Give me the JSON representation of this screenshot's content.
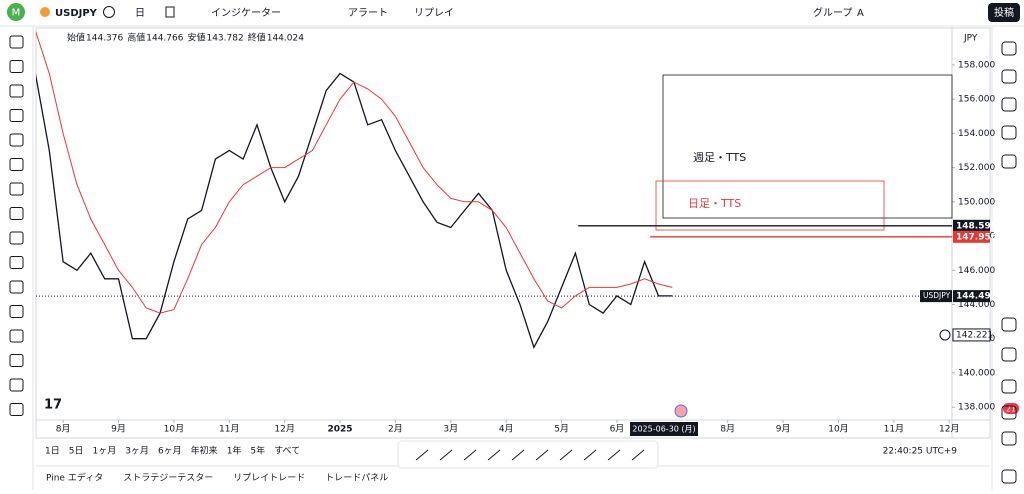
{
  "toolbar": {
    "symbol": "USDJPY",
    "interval": "日",
    "indicators": "インジケーター",
    "alert": "アラート",
    "replay": "リプレイ",
    "group": "グループ",
    "group_letter": "A",
    "publish": "投稿"
  },
  "ohlc": [
    {
      "label": "始値",
      "value": 144.376
    },
    {
      "label": "高値",
      "value": 144.766
    },
    {
      "label": "安値",
      "value": 143.782
    },
    {
      "label": "終値",
      "value": 144.024
    }
  ],
  "ranges": [
    "1日",
    "5日",
    "1ヶ月",
    "3ヶ月",
    "6ヶ月",
    "年初来",
    "1年",
    "5年",
    "すべて"
  ],
  "clock": "22:40:25 UTC+9",
  "tabs": [
    "Pine エディタ",
    "ストラテジーテスター",
    "リプレイトレード",
    "トレードパネル"
  ],
  "badge": "21",
  "chart_data": {
    "type": "line",
    "currency": "JPY",
    "x": [
      -0.5,
      -0.25,
      0,
      0.25,
      0.5,
      0.75,
      1,
      1.25,
      1.5,
      1.75,
      2,
      2.25,
      2.5,
      2.75,
      3,
      3.25,
      3.5,
      3.75,
      4,
      4.25,
      4.5,
      4.75,
      5,
      5.25,
      5.5,
      5.75,
      6,
      6.25,
      6.5,
      6.75,
      7,
      7.25,
      7.5,
      7.75,
      8,
      8.25,
      8.5,
      8.75,
      9,
      9.25,
      9.5,
      9.75,
      10,
      10.25,
      10.5,
      10.75,
      11
    ],
    "series": [
      {
        "name": "USDJPY",
        "color": "#131722",
        "values": [
          157.5,
          153,
          146.5,
          146,
          147,
          145.5,
          145.5,
          142,
          142,
          143.5,
          146.5,
          149,
          149.5,
          152.5,
          153,
          152.5,
          154.5,
          152,
          150,
          151.5,
          154,
          156.5,
          157.5,
          157,
          154.5,
          154.8,
          153,
          151.5,
          150,
          148.8,
          148.5,
          149.5,
          150.5,
          149.5,
          146,
          144,
          141.5,
          143,
          145,
          147,
          144,
          143.5,
          144.5,
          144,
          146.5,
          144.5,
          144.5
        ]
      },
      {
        "color": "#e53935",
        "values": [
          160,
          157.5,
          154,
          151,
          149,
          147.5,
          146,
          145,
          143.8,
          143.5,
          143.7,
          145.5,
          147.5,
          148.5,
          150,
          151,
          151.5,
          152,
          152,
          152.5,
          153,
          154.5,
          156,
          157,
          156.6,
          156,
          155,
          153.5,
          152,
          151,
          150.2,
          150,
          150,
          149.5,
          148.5,
          147,
          145.5,
          144.2,
          143.8,
          144.5,
          145,
          145,
          145,
          145.2,
          145.5,
          145.2,
          145
        ]
      }
    ],
    "xlim": [
      -0.49,
      16.05
    ],
    "xticks": [
      {
        "value": 0,
        "label": "8月"
      },
      {
        "value": 1,
        "label": "9月"
      },
      {
        "value": 2,
        "label": "10月"
      },
      {
        "value": 3,
        "label": "11月"
      },
      {
        "value": 4,
        "label": "12月"
      },
      {
        "value": 5,
        "label": "2025"
      },
      {
        "value": 6,
        "label": "2月"
      },
      {
        "value": 7,
        "label": "3月"
      },
      {
        "value": 8,
        "label": "4月"
      },
      {
        "value": 9,
        "label": "5月"
      },
      {
        "value": 10,
        "label": "6月"
      },
      {
        "value": 12,
        "label": "8月"
      },
      {
        "value": 13,
        "label": "9月"
      },
      {
        "value": 14,
        "label": "10月"
      },
      {
        "value": 15,
        "label": "11月"
      },
      {
        "value": 16,
        "label": "12月"
      }
    ],
    "crosshair": {
      "value": 10.85,
      "label": "2025-06-30 (月)"
    },
    "ylim": [
      137.25,
      160.16
    ],
    "yticks": [
      {
        "value": 138,
        "label": "138.000"
      },
      {
        "value": 140,
        "label": "140.000"
      },
      {
        "value": 142,
        "label": "142.000"
      },
      {
        "value": 144,
        "label": "144.000"
      },
      {
        "value": 146,
        "label": "146.000"
      },
      {
        "value": 148,
        "label": "148.000"
      },
      {
        "value": 150,
        "label": "150.000"
      },
      {
        "value": 152,
        "label": "152.000"
      },
      {
        "value": 154,
        "label": "154.000"
      },
      {
        "value": 156,
        "label": "156.000"
      },
      {
        "value": 158,
        "label": "158.000"
      }
    ],
    "grid": false,
    "levels": [
      {
        "value": 148.599,
        "color": "#131722",
        "from": 9.3
      },
      {
        "value": 147.956,
        "color": "#e53935",
        "from": 10.6
      }
    ],
    "last_price": {
      "name": "USDJPY",
      "value": 144.491
    },
    "marker_price": 142.221,
    "boxes": [
      {
        "label": "週足・TTS",
        "color": "#131722"
      },
      {
        "label": "日足・TTS",
        "color": "#e53935"
      }
    ]
  }
}
